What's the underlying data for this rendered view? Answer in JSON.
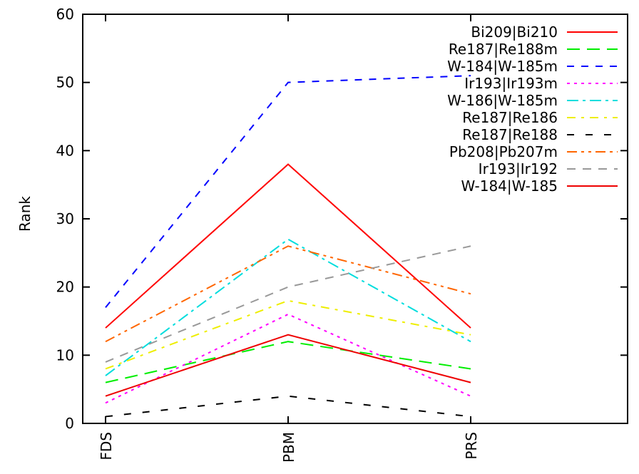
{
  "chart_data": {
    "type": "line",
    "title": "",
    "xlabel": "",
    "ylabel": "Rank",
    "categories": [
      "FDS",
      "PBM",
      "PRS"
    ],
    "ylim": [
      0,
      60
    ],
    "yticks": [
      0,
      10,
      20,
      30,
      40,
      50,
      60
    ],
    "grid": false,
    "legend_position": "top-right",
    "series": [
      {
        "name": "Bi209|Bi210",
        "values": [
          14,
          38,
          14
        ],
        "color": "#ff0000",
        "dash": "solid"
      },
      {
        "name": "Re187|Re188m",
        "values": [
          6,
          12,
          8
        ],
        "color": "#00ee00",
        "dash": "long"
      },
      {
        "name": "W-184|W-185m",
        "values": [
          17,
          50,
          51
        ],
        "color": "#0000ff",
        "dash": "short"
      },
      {
        "name": "Ir193|Ir193m",
        "values": [
          3,
          16,
          4
        ],
        "color": "#ff00ff",
        "dash": "dot"
      },
      {
        "name": "W-186|W-185m",
        "values": [
          7,
          27,
          12
        ],
        "color": "#00dddd",
        "dash": "dashdot"
      },
      {
        "name": "Re187|Re186",
        "values": [
          8,
          18,
          13
        ],
        "color": "#eeee00",
        "dash": "dashdot2"
      },
      {
        "name": "Re187|Re188",
        "values": [
          1,
          4,
          1
        ],
        "color": "#000000",
        "dash": "sparse"
      },
      {
        "name": "Pb208|Pb207m",
        "values": [
          12,
          26,
          19
        ],
        "color": "#ff6600",
        "dash": "dashdotdot"
      },
      {
        "name": "Ir193|Ir192",
        "values": [
          9,
          20,
          26
        ],
        "color": "#999999",
        "dash": "medium"
      },
      {
        "name": "W-184|W-185",
        "values": [
          4,
          13,
          6
        ],
        "color": "#ee0000",
        "dash": "solid"
      }
    ]
  }
}
